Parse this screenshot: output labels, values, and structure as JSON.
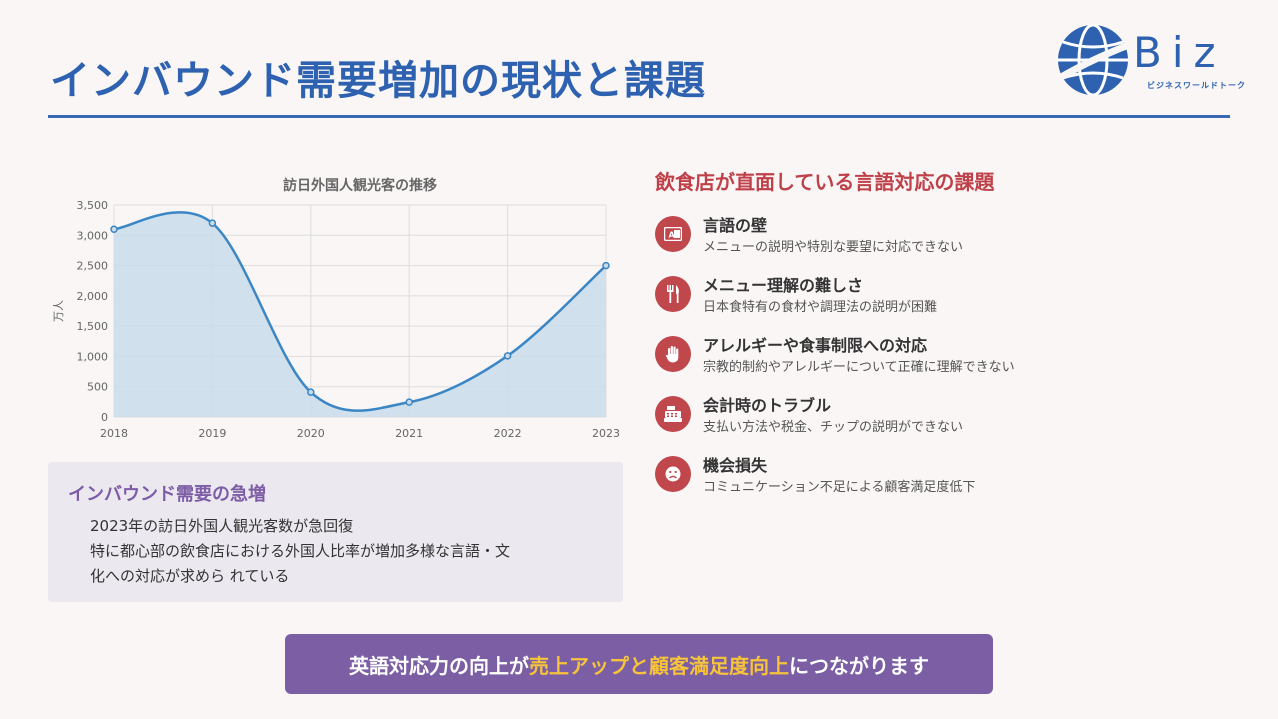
{
  "page": {
    "title": "インバウンド需要増加の現状と課題"
  },
  "logo": {
    "word": "Biz",
    "sub": "ビジネスワールドトーク"
  },
  "chart_data": {
    "type": "area",
    "title": "訪日外国人観光客の推移",
    "ylabel": "万人",
    "xlabel": "",
    "x": [
      "2018",
      "2019",
      "2020",
      "2021",
      "2022",
      "2023"
    ],
    "series": [
      {
        "values": [
          3100,
          3200,
          410,
          245,
          1010,
          2500
        ]
      }
    ],
    "ylim": [
      0,
      3500
    ],
    "yticks": [
      "0",
      "500",
      "1,000",
      "1,500",
      "2,000",
      "2,500",
      "3,000",
      "3,500"
    ],
    "grid": true,
    "colors": {
      "line": "#3b86c4",
      "fill": "#c9dcea"
    }
  },
  "panel": {
    "title": "インバウンド需要の急増",
    "lines": [
      "2023年の訪日外国人観光客数が急回復",
      "特に都心部の飲食店における外国人比率が増加多様な言語・文",
      "化への対応が求めら れている"
    ]
  },
  "challenges": {
    "title": "飲食店が直面している言語対応の課題",
    "items": [
      {
        "name": "言語の壁",
        "desc": "メニューの説明や特別な要望に対応できない",
        "icon": "language-icon"
      },
      {
        "name": "メニュー理解の難しさ",
        "desc": "日本食特有の食材や調理法の説明が困難",
        "icon": "utensils-icon"
      },
      {
        "name": "アレルギーや食事制限への対応",
        "desc": "宗教的制約やアレルギーについて正確に理解できない",
        "icon": "hand-icon"
      },
      {
        "name": "会計時のトラブル",
        "desc": "支払い方法や税金、チップの説明ができない",
        "icon": "cash-register-icon"
      },
      {
        "name": "機会損失",
        "desc": "コミュニケーション不足による顧客満足度低下",
        "icon": "frown-icon"
      }
    ]
  },
  "banner": {
    "part1": "英語対応力の向上が",
    "highlight": "売上アップと顧客満足度向上",
    "part2": "につながります"
  },
  "colors": {
    "title_blue": "#2e62b0",
    "challenge_red": "#c0474c",
    "banner_purple": "#7b5ea3",
    "highlight_yellow": "#f6c33b"
  }
}
